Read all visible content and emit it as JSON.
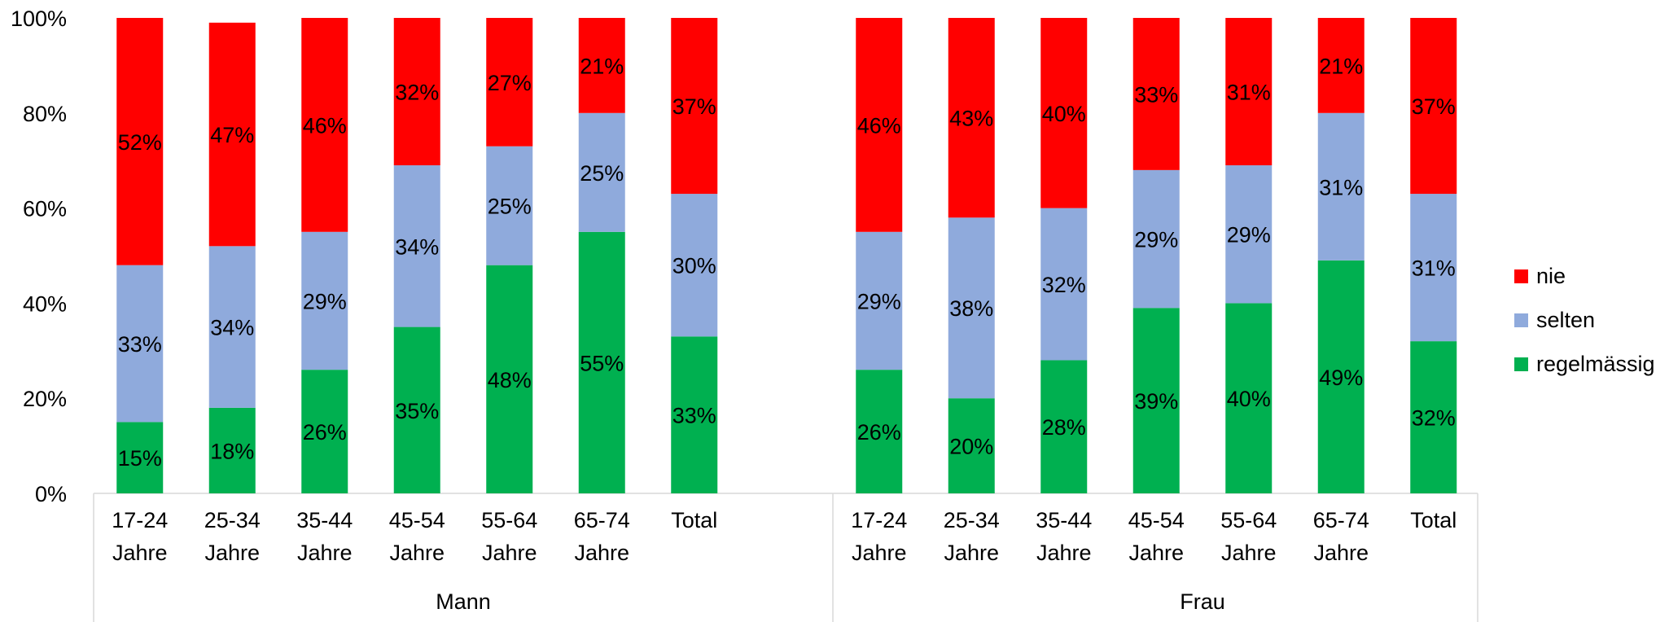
{
  "chart_data": {
    "type": "bar",
    "stacked": true,
    "percent_stacked": true,
    "y_ticks": [
      "0%",
      "20%",
      "40%",
      "60%",
      "80%",
      "100%"
    ],
    "ylim": [
      0,
      100
    ],
    "legend_position": "right",
    "groups": [
      {
        "name": "Mann",
        "categories": [
          [
            "17-24",
            "Jahre"
          ],
          [
            "25-34",
            "Jahre"
          ],
          [
            "35-44",
            "Jahre"
          ],
          [
            "45-54",
            "Jahre"
          ],
          [
            "55-64",
            "Jahre"
          ],
          [
            "65-74",
            "Jahre"
          ],
          [
            "Total"
          ]
        ],
        "series": [
          {
            "name": "regelmässig",
            "values": [
              15,
              18,
              26,
              35,
              48,
              55,
              33
            ]
          },
          {
            "name": "selten",
            "values": [
              33,
              34,
              29,
              34,
              25,
              25,
              30
            ]
          },
          {
            "name": "nie",
            "values": [
              52,
              47,
              46,
              32,
              27,
              21,
              37
            ]
          }
        ]
      },
      {
        "name": "Frau",
        "categories": [
          [
            "17-24",
            "Jahre"
          ],
          [
            "25-34",
            "Jahre"
          ],
          [
            "35-44",
            "Jahre"
          ],
          [
            "45-54",
            "Jahre"
          ],
          [
            "55-64",
            "Jahre"
          ],
          [
            "65-74",
            "Jahre"
          ],
          [
            "Total"
          ]
        ],
        "series": [
          {
            "name": "regelmässig",
            "values": [
              26,
              20,
              28,
              39,
              40,
              49,
              32
            ]
          },
          {
            "name": "selten",
            "values": [
              29,
              38,
              32,
              29,
              29,
              31,
              31
            ]
          },
          {
            "name": "nie",
            "values": [
              46,
              43,
              40,
              33,
              31,
              21,
              37
            ]
          }
        ]
      }
    ]
  },
  "colors": {
    "regelmässig": "#00b050",
    "selten": "#8faadc",
    "nie": "#ff0000"
  },
  "legend": [
    {
      "label": "nie",
      "color": "#ff0000"
    },
    {
      "label": "selten",
      "color": "#8faadc"
    },
    {
      "label": "regelmässig",
      "color": "#00b050"
    }
  ]
}
